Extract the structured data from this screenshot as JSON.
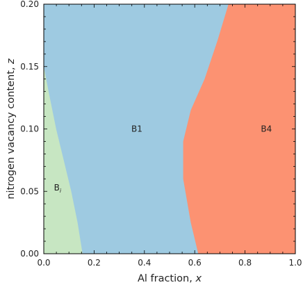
{
  "chart_data": {
    "type": "area",
    "title": "",
    "xlabel": "Al fraction, ",
    "xlabel_var": "x",
    "ylabel": "nitrogen vacancy content, ",
    "ylabel_var": "z",
    "xlim": [
      0.0,
      1.0
    ],
    "ylim": [
      0.0,
      0.2
    ],
    "x_ticks": [
      "0.0",
      "0.2",
      "0.4",
      "0.6",
      "0.8",
      "1.0"
    ],
    "y_ticks": [
      "0.00",
      "0.05",
      "0.10",
      "0.15",
      "0.20"
    ],
    "grid": false,
    "regions": [
      {
        "name": "B",
        "subscript": "i",
        "color": "#c7e6c2",
        "label_at": {
          "x": 0.055,
          "z": 0.053
        },
        "boundary": [
          [
            0.0,
            0.151
          ],
          [
            0.02,
            0.13
          ],
          [
            0.05,
            0.1
          ],
          [
            0.08,
            0.075
          ],
          [
            0.11,
            0.05
          ],
          [
            0.135,
            0.025
          ],
          [
            0.155,
            0.0
          ],
          [
            0.0,
            0.0
          ]
        ]
      },
      {
        "name": "B1",
        "subscript": "",
        "color": "#9ecae1",
        "label_at": {
          "x": 0.37,
          "z": 0.1
        },
        "boundary": [
          [
            0.0,
            0.151
          ],
          [
            0.02,
            0.13
          ],
          [
            0.05,
            0.1
          ],
          [
            0.08,
            0.075
          ],
          [
            0.11,
            0.05
          ],
          [
            0.135,
            0.025
          ],
          [
            0.155,
            0.0
          ],
          [
            0.615,
            0.0
          ],
          [
            0.585,
            0.025
          ],
          [
            0.555,
            0.06
          ],
          [
            0.555,
            0.09
          ],
          [
            0.585,
            0.115
          ],
          [
            0.64,
            0.14
          ],
          [
            0.69,
            0.17
          ],
          [
            0.735,
            0.2
          ],
          [
            0.0,
            0.2
          ]
        ]
      },
      {
        "name": "B4",
        "subscript": "",
        "color": "#fc9272",
        "label_at": {
          "x": 0.885,
          "z": 0.1
        },
        "boundary": [
          [
            0.615,
            0.0
          ],
          [
            0.585,
            0.025
          ],
          [
            0.555,
            0.06
          ],
          [
            0.555,
            0.09
          ],
          [
            0.585,
            0.115
          ],
          [
            0.64,
            0.14
          ],
          [
            0.69,
            0.17
          ],
          [
            0.735,
            0.2
          ],
          [
            1.0,
            0.2
          ],
          [
            1.0,
            0.0
          ]
        ]
      }
    ]
  }
}
